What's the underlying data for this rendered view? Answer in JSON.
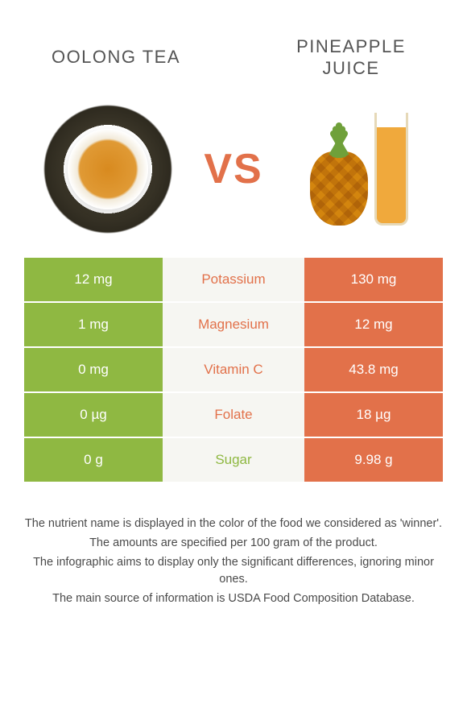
{
  "left": {
    "title": "Oolong tea",
    "color": "#8fb842"
  },
  "right": {
    "title": "Pineapple juice",
    "color": "#e2714a"
  },
  "vs_text": "VS",
  "vs_color": "#e2714a",
  "rows": [
    {
      "nutrient": "Potassium",
      "left": "12 mg",
      "right": "130 mg",
      "winner": "right"
    },
    {
      "nutrient": "Magnesium",
      "left": "1 mg",
      "right": "12 mg",
      "winner": "right"
    },
    {
      "nutrient": "Vitamin C",
      "left": "0 mg",
      "right": "43.8 mg",
      "winner": "right"
    },
    {
      "nutrient": "Folate",
      "left": "0 µg",
      "right": "18 µg",
      "winner": "right"
    },
    {
      "nutrient": "Sugar",
      "left": "0 g",
      "right": "9.98 g",
      "winner": "left"
    }
  ],
  "notes": [
    "The nutrient name is displayed in the color of the food we considered as 'winner'.",
    "The amounts are specified per 100 gram of the product.",
    "The infographic aims to display only the significant differences, ignoring minor ones.",
    "The main source of information is USDA Food Composition Database."
  ],
  "mid_bg": "#f6f6f2"
}
